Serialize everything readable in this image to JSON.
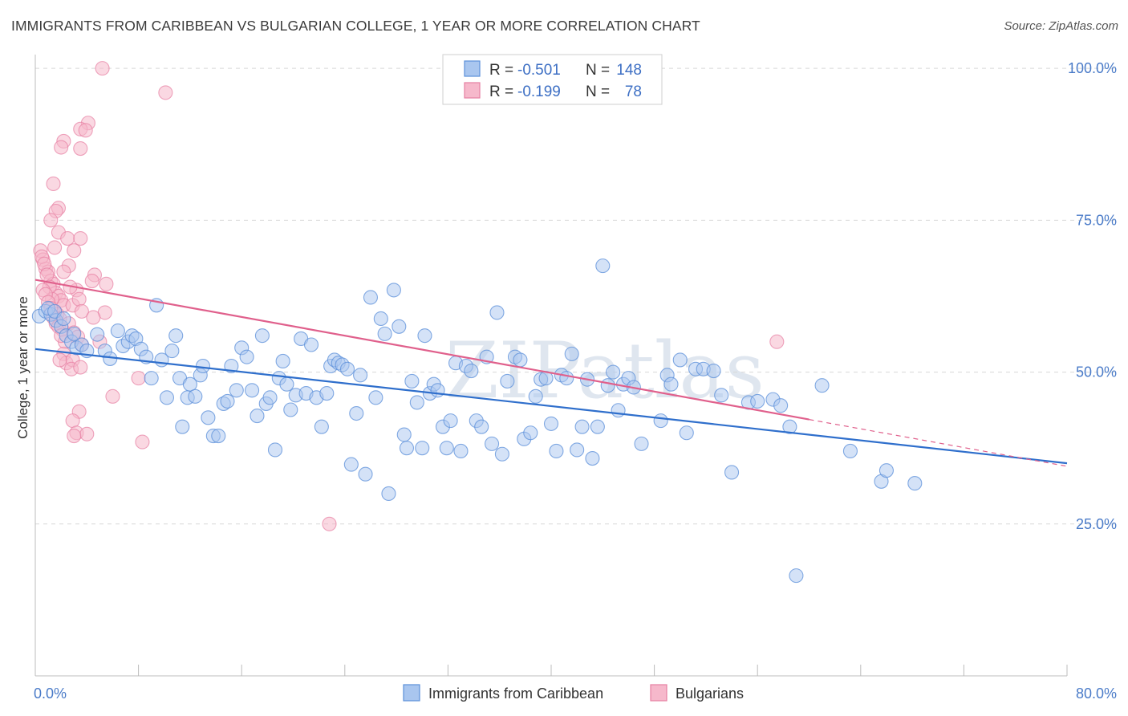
{
  "title": "IMMIGRANTS FROM CARIBBEAN VS BULGARIAN COLLEGE, 1 YEAR OR MORE CORRELATION CHART",
  "source": "Source: ZipAtlas.com",
  "watermark": "ZIPatlas",
  "colors": {
    "blue_fill": "#a9c6ef",
    "blue_stroke": "#5b8fd9",
    "blue_line": "#2f6fcc",
    "pink_fill": "#f6b8cb",
    "pink_stroke": "#e77fa2",
    "pink_line": "#e0608c",
    "grid": "#d8d8d8",
    "tick_text": "#4a7bc8"
  },
  "legend": {
    "blue": {
      "r_label": "R =",
      "r_value": "-0.501",
      "n_label": "N =",
      "n_value": "148"
    },
    "pink": {
      "r_label": "R =",
      "r_value": "-0.199",
      "n_label": "N =",
      "n_value": "78"
    }
  },
  "chart_data": {
    "type": "scatter",
    "title": "IMMIGRANTS FROM CARIBBEAN VS BULGARIAN COLLEGE, 1 YEAR OR MORE CORRELATION CHART",
    "xlabel": "",
    "ylabel": "College, 1 year or more",
    "xlim": [
      0,
      80
    ],
    "ylim": [
      0,
      102
    ],
    "x_tick_labels": [
      "0.0%",
      "80.0%"
    ],
    "y_ticks": [
      25,
      50,
      75,
      100
    ],
    "y_tick_labels": [
      "25.0%",
      "50.0%",
      "75.0%",
      "100.0%"
    ],
    "grid": true,
    "legend_position": "top-center",
    "series": [
      {
        "name": "Immigrants from Caribbean",
        "color": "#a9c6ef",
        "trend": {
          "x": [
            0,
            80
          ],
          "y": [
            53.8,
            35.0
          ]
        },
        "points": [
          [
            0.3,
            59.2
          ],
          [
            0.8,
            60.0
          ],
          [
            1.2,
            59.5
          ],
          [
            1.6,
            58.5
          ],
          [
            2.0,
            57.5
          ],
          [
            2.4,
            56.0
          ],
          [
            2.8,
            55.0
          ],
          [
            3.2,
            54.0
          ],
          [
            3.6,
            54.5
          ],
          [
            4.0,
            53.5
          ],
          [
            1.0,
            60.5
          ],
          [
            1.5,
            60.0
          ],
          [
            2.2,
            58.8
          ],
          [
            3.0,
            56.3
          ],
          [
            4.8,
            56.2
          ],
          [
            5.4,
            53.5
          ],
          [
            5.8,
            52.2
          ],
          [
            6.4,
            56.8
          ],
          [
            6.8,
            54.3
          ],
          [
            7.2,
            55.0
          ],
          [
            7.5,
            56.0
          ],
          [
            7.8,
            55.5
          ],
          [
            8.2,
            53.8
          ],
          [
            8.6,
            52.5
          ],
          [
            9.0,
            49.0
          ],
          [
            9.4,
            61.0
          ],
          [
            9.8,
            52.0
          ],
          [
            10.2,
            45.8
          ],
          [
            10.6,
            53.5
          ],
          [
            10.9,
            56.0
          ],
          [
            11.2,
            49.0
          ],
          [
            11.4,
            41.0
          ],
          [
            11.8,
            45.8
          ],
          [
            12.0,
            48.0
          ],
          [
            12.4,
            46.0
          ],
          [
            12.8,
            49.5
          ],
          [
            13.0,
            51.0
          ],
          [
            13.4,
            42.5
          ],
          [
            13.8,
            39.5
          ],
          [
            14.2,
            39.5
          ],
          [
            14.6,
            44.8
          ],
          [
            14.9,
            45.2
          ],
          [
            15.2,
            51.0
          ],
          [
            15.6,
            47.0
          ],
          [
            16.0,
            54.0
          ],
          [
            16.4,
            52.5
          ],
          [
            16.8,
            47.0
          ],
          [
            17.2,
            42.8
          ],
          [
            17.6,
            56.0
          ],
          [
            17.9,
            44.8
          ],
          [
            18.2,
            45.8
          ],
          [
            18.6,
            37.2
          ],
          [
            18.9,
            49.0
          ],
          [
            19.2,
            51.8
          ],
          [
            19.5,
            48.0
          ],
          [
            19.8,
            43.8
          ],
          [
            20.2,
            46.2
          ],
          [
            20.6,
            55.5
          ],
          [
            21.0,
            46.5
          ],
          [
            21.4,
            54.5
          ],
          [
            21.8,
            45.8
          ],
          [
            22.2,
            41.0
          ],
          [
            22.6,
            46.5
          ],
          [
            22.9,
            51.0
          ],
          [
            23.2,
            52.0
          ],
          [
            23.5,
            51.5
          ],
          [
            23.8,
            51.2
          ],
          [
            24.2,
            50.5
          ],
          [
            24.5,
            34.8
          ],
          [
            24.9,
            43.2
          ],
          [
            25.2,
            49.5
          ],
          [
            25.6,
            33.2
          ],
          [
            26.0,
            62.3
          ],
          [
            26.4,
            45.8
          ],
          [
            26.8,
            58.8
          ],
          [
            27.1,
            56.3
          ],
          [
            27.4,
            30.0
          ],
          [
            27.8,
            63.5
          ],
          [
            28.2,
            57.5
          ],
          [
            28.6,
            39.7
          ],
          [
            28.8,
            37.5
          ],
          [
            29.2,
            48.5
          ],
          [
            29.6,
            45.0
          ],
          [
            30.0,
            37.5
          ],
          [
            30.2,
            56.0
          ],
          [
            30.6,
            46.5
          ],
          [
            30.9,
            48.0
          ],
          [
            31.2,
            47.0
          ],
          [
            31.6,
            41.0
          ],
          [
            31.9,
            37.5
          ],
          [
            32.2,
            42.0
          ],
          [
            32.6,
            51.5
          ],
          [
            33.0,
            37.0
          ],
          [
            33.4,
            51.0
          ],
          [
            33.8,
            50.2
          ],
          [
            34.2,
            42.0
          ],
          [
            34.6,
            41.0
          ],
          [
            35.0,
            52.5
          ],
          [
            35.4,
            38.2
          ],
          [
            35.8,
            59.8
          ],
          [
            36.2,
            36.5
          ],
          [
            36.6,
            48.5
          ],
          [
            37.2,
            52.5
          ],
          [
            37.6,
            52.0
          ],
          [
            37.9,
            39.0
          ],
          [
            38.4,
            40.0
          ],
          [
            38.8,
            46.0
          ],
          [
            39.2,
            48.8
          ],
          [
            39.6,
            49.0
          ],
          [
            40.0,
            41.5
          ],
          [
            40.4,
            37.0
          ],
          [
            40.8,
            49.5
          ],
          [
            41.2,
            49.0
          ],
          [
            41.6,
            53.0
          ],
          [
            42.0,
            37.2
          ],
          [
            42.4,
            41.0
          ],
          [
            42.8,
            48.8
          ],
          [
            43.2,
            35.8
          ],
          [
            43.6,
            41.0
          ],
          [
            44.0,
            67.5
          ],
          [
            44.4,
            47.8
          ],
          [
            44.8,
            50.0
          ],
          [
            45.2,
            43.7
          ],
          [
            45.6,
            48.0
          ],
          [
            46.0,
            49.0
          ],
          [
            46.4,
            47.5
          ],
          [
            47.0,
            38.2
          ],
          [
            48.5,
            42.0
          ],
          [
            49.0,
            49.5
          ],
          [
            49.3,
            48.0
          ],
          [
            50.0,
            52.0
          ],
          [
            50.5,
            40.0
          ],
          [
            51.2,
            50.5
          ],
          [
            51.8,
            50.5
          ],
          [
            52.6,
            50.2
          ],
          [
            53.2,
            46.2
          ],
          [
            54.0,
            33.5
          ],
          [
            55.3,
            45.0
          ],
          [
            57.2,
            45.5
          ],
          [
            57.8,
            44.5
          ],
          [
            58.5,
            41.0
          ],
          [
            59.0,
            16.5
          ],
          [
            61.0,
            47.8
          ],
          [
            63.2,
            37.0
          ],
          [
            65.6,
            32.0
          ],
          [
            66.0,
            33.8
          ],
          [
            68.2,
            31.7
          ],
          [
            56.0,
            45.2
          ]
        ]
      },
      {
        "name": "Bulgarians",
        "color": "#f6b8cb",
        "trend": {
          "x": [
            0,
            60
          ],
          "y": [
            65.2,
            42.2
          ]
        },
        "trend_dashed": {
          "x": [
            60,
            80
          ],
          "y": [
            42.2,
            34.5
          ]
        },
        "points": [
          [
            0.4,
            70.0
          ],
          [
            0.6,
            68.5
          ],
          [
            0.8,
            67.0
          ],
          [
            1.0,
            66.5
          ],
          [
            1.2,
            65.0
          ],
          [
            1.4,
            64.5
          ],
          [
            1.6,
            63.0
          ],
          [
            1.8,
            62.5
          ],
          [
            2.0,
            61.8
          ],
          [
            2.2,
            61.0
          ],
          [
            0.5,
            69.0
          ],
          [
            0.7,
            67.8
          ],
          [
            0.9,
            66.0
          ],
          [
            1.1,
            64.0
          ],
          [
            1.3,
            62.0
          ],
          [
            1.5,
            60.0
          ],
          [
            1.7,
            59.5
          ],
          [
            1.9,
            58.8
          ],
          [
            2.1,
            57.0
          ],
          [
            2.3,
            55.0
          ],
          [
            0.6,
            63.5
          ],
          [
            0.8,
            62.8
          ],
          [
            1.0,
            61.5
          ],
          [
            1.2,
            60.5
          ],
          [
            1.4,
            59.0
          ],
          [
            1.6,
            58.0
          ],
          [
            1.8,
            57.5
          ],
          [
            2.0,
            56.0
          ],
          [
            2.2,
            53.0
          ],
          [
            2.4,
            51.5
          ],
          [
            5.2,
            100.0
          ],
          [
            10.1,
            96.0
          ],
          [
            4.1,
            91.0
          ],
          [
            3.5,
            90.0
          ],
          [
            3.9,
            89.8
          ],
          [
            2.2,
            88.0
          ],
          [
            2.0,
            87.0
          ],
          [
            3.5,
            86.8
          ],
          [
            1.4,
            81.0
          ],
          [
            1.8,
            77.0
          ],
          [
            1.6,
            76.5
          ],
          [
            1.2,
            75.0
          ],
          [
            1.8,
            73.0
          ],
          [
            2.5,
            72.0
          ],
          [
            3.5,
            72.0
          ],
          [
            3.0,
            70.0
          ],
          [
            2.6,
            67.5
          ],
          [
            2.2,
            66.5
          ],
          [
            4.6,
            66.0
          ],
          [
            4.4,
            65.0
          ],
          [
            5.5,
            64.5
          ],
          [
            3.2,
            63.5
          ],
          [
            2.9,
            61.0
          ],
          [
            3.4,
            62.0
          ],
          [
            3.6,
            60.0
          ],
          [
            5.4,
            59.8
          ],
          [
            4.5,
            59.0
          ],
          [
            2.6,
            58.0
          ],
          [
            3.0,
            56.5
          ],
          [
            3.3,
            55.8
          ],
          [
            5.0,
            55.0
          ],
          [
            3.6,
            54.5
          ],
          [
            2.9,
            52.0
          ],
          [
            2.8,
            50.5
          ],
          [
            3.5,
            50.8
          ],
          [
            8.0,
            49.0
          ],
          [
            6.0,
            46.0
          ],
          [
            3.4,
            43.5
          ],
          [
            2.9,
            42.0
          ],
          [
            3.2,
            40.0
          ],
          [
            4.0,
            39.8
          ],
          [
            3.0,
            39.5
          ],
          [
            8.3,
            38.5
          ],
          [
            57.5,
            55.0
          ],
          [
            22.8,
            25.0
          ],
          [
            1.5,
            70.5
          ],
          [
            2.7,
            64.0
          ],
          [
            1.9,
            52.0
          ]
        ]
      }
    ]
  },
  "bottom_legend": [
    {
      "label": "Immigrants from Caribbean",
      "color": "#a9c6ef"
    },
    {
      "label": "Bulgarians",
      "color": "#f6b8cb"
    }
  ]
}
